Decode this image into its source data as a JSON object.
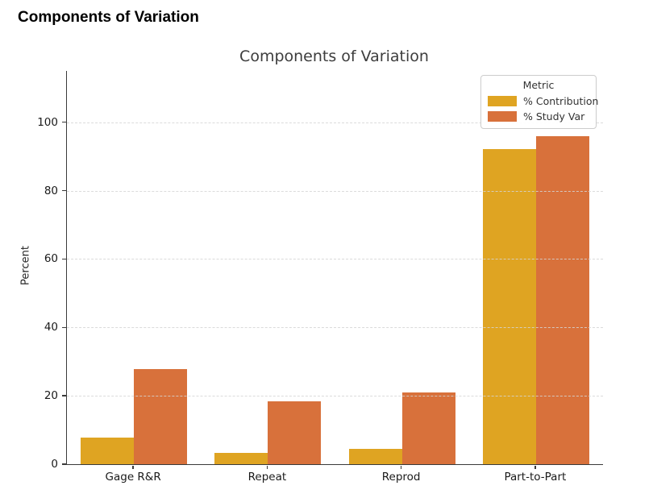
{
  "page": {
    "header_title": "Components of Variation"
  },
  "colors": {
    "contribution": "#DFA422",
    "study_var": "#D8713B",
    "axis": "#3a3a3a",
    "grid": "#d5d5d5",
    "tick_text": "#1a1a1a",
    "title_text": "#3d3d3d",
    "legend_border": "#cccccc"
  },
  "chart_data": {
    "type": "bar",
    "title": "Components of Variation",
    "xlabel": "",
    "ylabel": "Percent",
    "categories": [
      "Gage R&R",
      "Repeat",
      "Reprod",
      "Part-to-Part"
    ],
    "series": [
      {
        "name": "% Contribution",
        "color": "#DFA422",
        "values": [
          7.7,
          3.3,
          4.4,
          92.2
        ]
      },
      {
        "name": "% Study Var",
        "color": "#D8713B",
        "values": [
          27.9,
          18.4,
          21.0,
          96.0
        ]
      }
    ],
    "ylim": [
      0,
      115
    ],
    "yticks": [
      0,
      20,
      40,
      60,
      80,
      100
    ],
    "grid": "horizontal-dashed-over-bars",
    "legend": {
      "title": "Metric",
      "position": "upper right"
    }
  }
}
